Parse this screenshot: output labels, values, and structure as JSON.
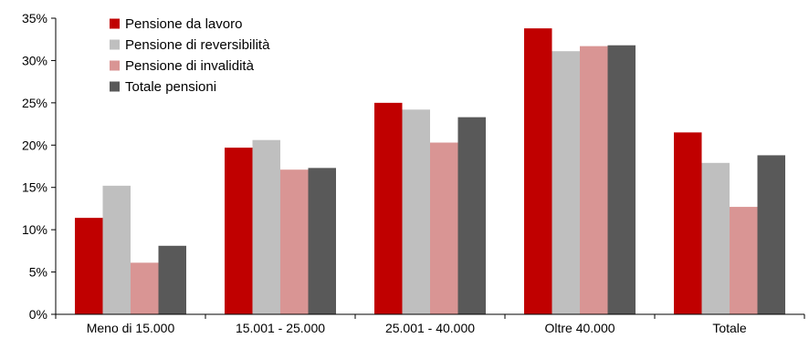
{
  "chart_data": {
    "type": "bar",
    "categories": [
      "Meno di 15.000",
      "15.001 - 25.000",
      "25.001 - 40.000",
      "Oltre 40.000",
      "Totale"
    ],
    "series": [
      {
        "name": "Pensione da lavoro",
        "color": "#C00000",
        "values": [
          11.4,
          19.7,
          25.0,
          33.8,
          21.5
        ]
      },
      {
        "name": "Pensione di reversibilità",
        "color": "#BFBFBF",
        "values": [
          15.2,
          20.6,
          24.2,
          31.1,
          17.9
        ]
      },
      {
        "name": "Pensione di invalidità",
        "color": "#D99594",
        "values": [
          6.1,
          17.1,
          20.3,
          31.7,
          12.7
        ]
      },
      {
        "name": "Totale pensioni",
        "color": "#595959",
        "values": [
          8.1,
          17.3,
          23.3,
          31.8,
          18.8
        ]
      }
    ],
    "y_ticks": [
      "0%",
      "5%",
      "10%",
      "15%",
      "20%",
      "25%",
      "30%",
      "35%"
    ],
    "ylim": [
      0,
      35
    ],
    "legend_position": "top-left",
    "grid": false
  }
}
